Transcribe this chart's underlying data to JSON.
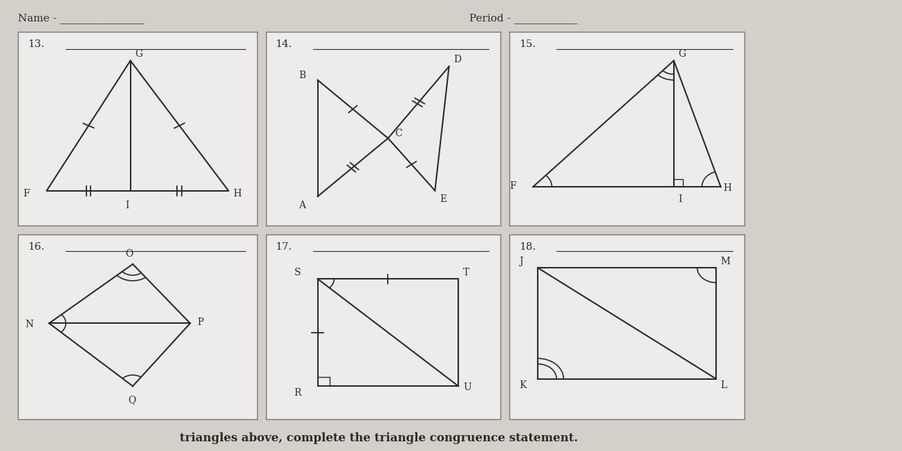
{
  "bg_color": "#d4cfc8",
  "paper_color": "#edecea",
  "line_color": "#2a2a2a",
  "header_name": "Name -",
  "header_period": "Period -",
  "footer_text": "triangles above, complete the triangle congruence statement.",
  "problems": [
    "13.",
    "14.",
    "15.",
    "16.",
    "17.",
    "18."
  ]
}
